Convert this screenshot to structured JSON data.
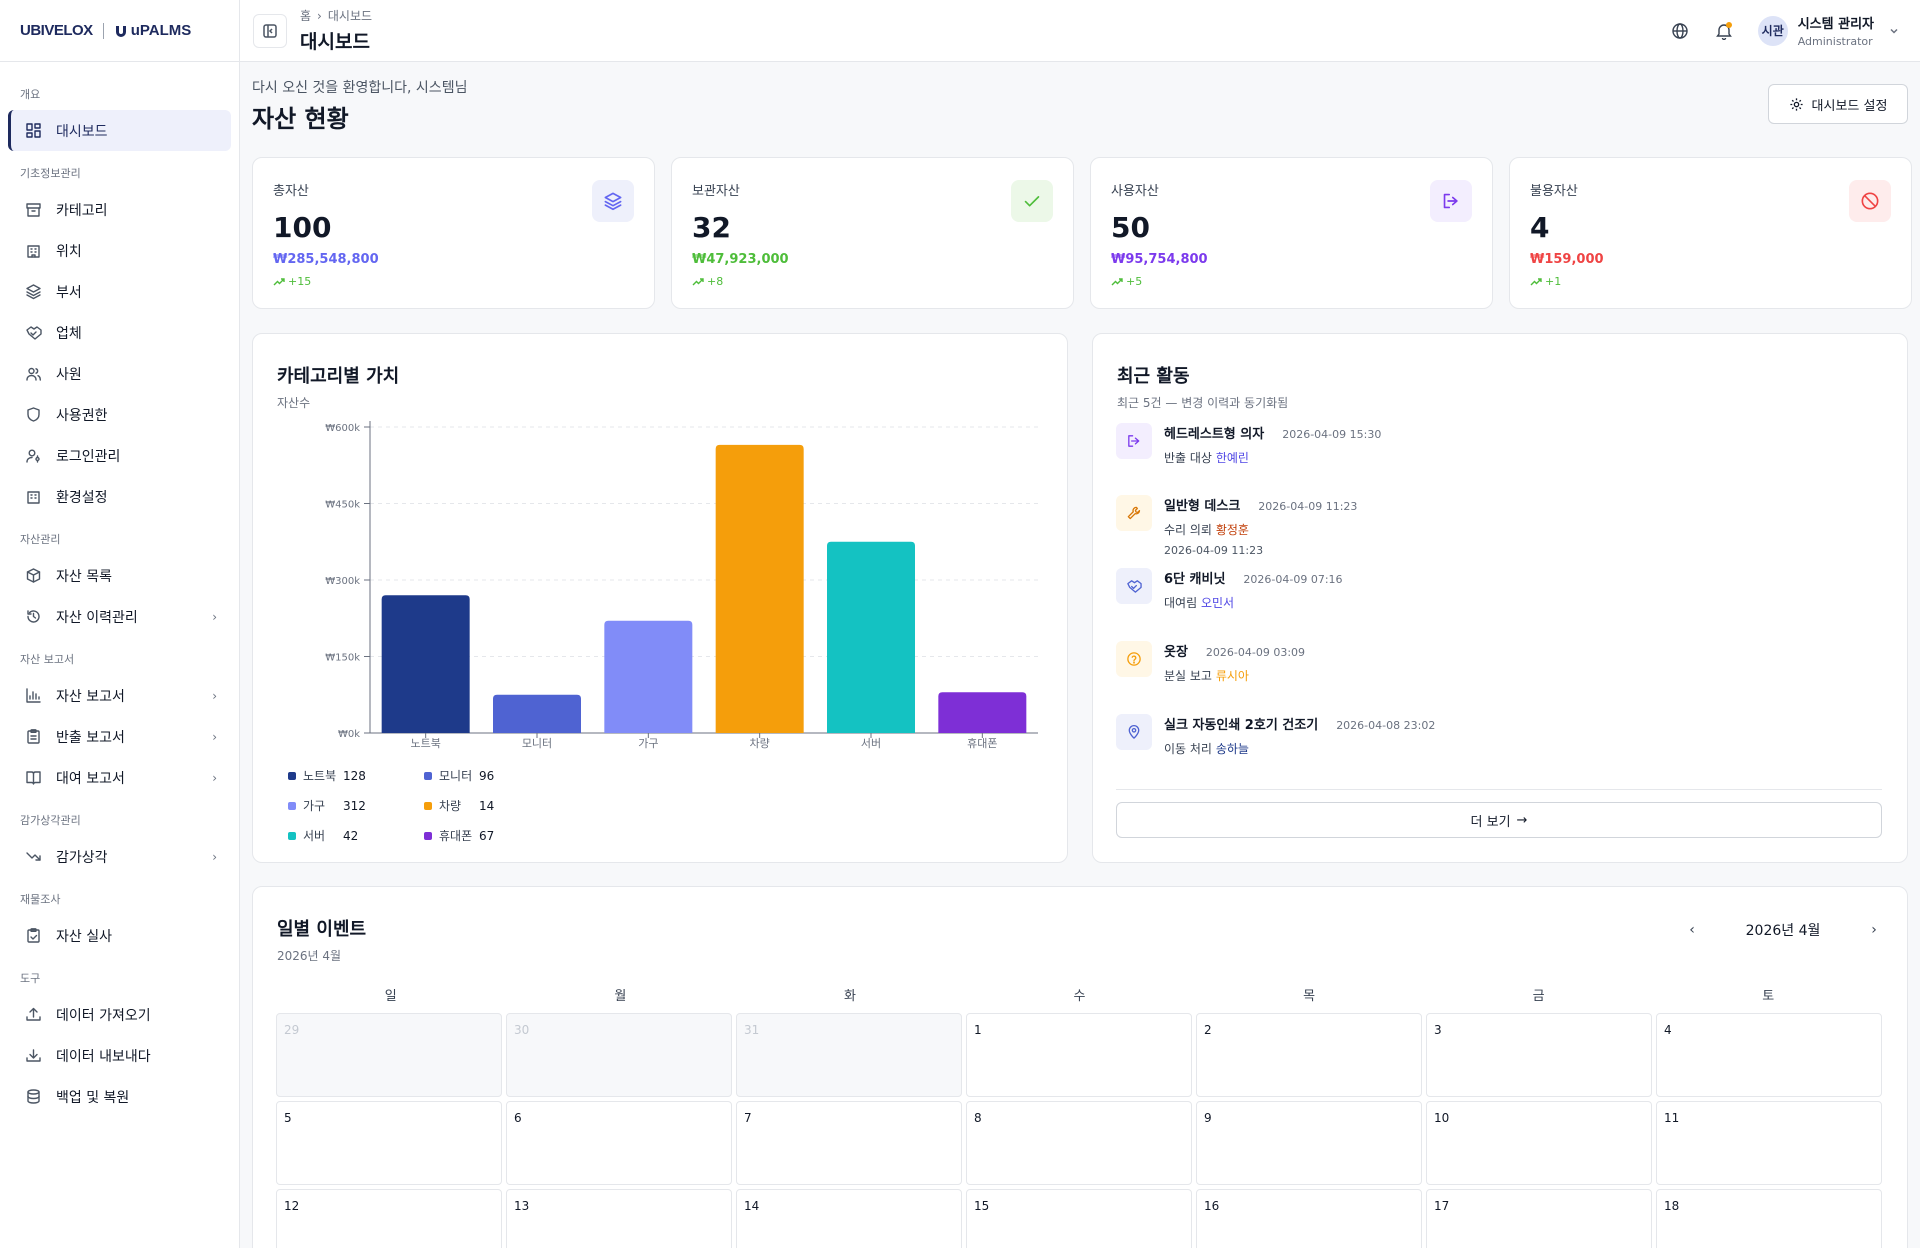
{
  "brand": {
    "logo1": "UBIVELOX",
    "logo2": "uPALMS"
  },
  "sidebar": {
    "sections": [
      {
        "label": "개요",
        "items": [
          {
            "label": "대시보드",
            "icon": "dashboard-icon",
            "active": true
          }
        ]
      },
      {
        "label": "기초정보관리",
        "items": [
          {
            "label": "카테고리",
            "icon": "archive-icon"
          },
          {
            "label": "위치",
            "icon": "building-icon"
          },
          {
            "label": "부서",
            "icon": "layers-icon"
          },
          {
            "label": "업체",
            "icon": "handshake-icon"
          },
          {
            "label": "사원",
            "icon": "users-icon"
          },
          {
            "label": "사용권한",
            "icon": "shield-icon"
          },
          {
            "label": "로그인관리",
            "icon": "user-key-icon"
          },
          {
            "label": "환경설정",
            "icon": "building-settings-icon"
          }
        ]
      },
      {
        "label": "자산관리",
        "items": [
          {
            "label": "자산 목록",
            "icon": "package-icon"
          },
          {
            "label": "자산 이력관리",
            "icon": "history-icon",
            "chevron": true
          }
        ]
      },
      {
        "label": "자산 보고서",
        "items": [
          {
            "label": "자산 보고서",
            "icon": "bar-chart-icon",
            "chevron": true
          },
          {
            "label": "반출 보고서",
            "icon": "clipboard-icon",
            "chevron": true
          },
          {
            "label": "대여 보고서",
            "icon": "book-icon",
            "chevron": true
          }
        ]
      },
      {
        "label": "감가상각관리",
        "items": [
          {
            "label": "감가상각",
            "icon": "trending-down-icon",
            "chevron": true
          }
        ]
      },
      {
        "label": "재물조사",
        "items": [
          {
            "label": "자산 실사",
            "icon": "clipboard-check-icon"
          }
        ]
      },
      {
        "label": "도구",
        "items": [
          {
            "label": "데이터 가져오기",
            "icon": "upload-icon"
          },
          {
            "label": "데이터 내보내다",
            "icon": "download-icon"
          },
          {
            "label": "백업 및 복원",
            "icon": "database-icon"
          }
        ]
      }
    ]
  },
  "header": {
    "breadcrumb_home": "홈",
    "breadcrumb_current": "대시보드",
    "title": "대시보드",
    "user": {
      "avatar": "시관",
      "name": "시스템 관리자",
      "role": "Administrator"
    }
  },
  "page": {
    "welcome": "다시 오신 것을 환영합니다, 시스템님",
    "title": "자산 현황",
    "settings_label": "대시보드 설정"
  },
  "stats": [
    {
      "title": "총자산",
      "value": "100",
      "money": "₩285,548,800",
      "delta": "+15",
      "color": "#6366f1",
      "icon": "layers-icon"
    },
    {
      "title": "보관자산",
      "value": "32",
      "money": "₩47,923,000",
      "delta": "+8",
      "color": "#4ebd3a",
      "icon": "check-icon"
    },
    {
      "title": "사용자산",
      "value": "50",
      "money": "₩95,754,800",
      "delta": "+5",
      "color": "#7c3aed",
      "icon": "log-out-icon"
    },
    {
      "title": "불용자산",
      "value": "4",
      "money": "₩159,000",
      "delta": "+1",
      "color": "#ef4444",
      "icon": "ban-icon"
    }
  ],
  "chart_data": {
    "type": "bar",
    "title": "카테고리별 가치",
    "subtitle": "자산수",
    "categories": [
      "노트북",
      "모니터",
      "가구",
      "차량",
      "서버",
      "휴대폰"
    ],
    "values": [
      270000,
      75000,
      220000,
      565000,
      375000,
      80000
    ],
    "colors": [
      "#1e3a8a",
      "#4f63d2",
      "#818cf8",
      "#f59e0b",
      "#14c2c2",
      "#7e2fd6"
    ],
    "ylim": [
      0,
      600000
    ],
    "yticks": [
      0,
      150000,
      300000,
      450000,
      600000
    ],
    "ytick_labels": [
      "₩0k",
      "₩150k",
      "₩300k",
      "₩450k",
      "₩600k"
    ],
    "grid": true,
    "legend": [
      {
        "name": "노트북",
        "count": "128"
      },
      {
        "name": "모니터",
        "count": "96"
      },
      {
        "name": "가구",
        "count": "312"
      },
      {
        "name": "차량",
        "count": "14"
      },
      {
        "name": "서버",
        "count": "42"
      },
      {
        "name": "휴대폰",
        "count": "67"
      }
    ]
  },
  "activity": {
    "title": "최근 활동",
    "subtitle": "최근 5건 — 변경 이력과 동기화됨",
    "items": [
      {
        "name": "헤드레스트형 의자",
        "time": "2026-04-09 15:30",
        "action": "반출 대상",
        "person": "한예린",
        "person_color": "#4f46e5",
        "icon": "log-out-icon",
        "bg": "#f3eefe",
        "fg": "#7c3aed"
      },
      {
        "name": "일반형 데스크",
        "time": "2026-04-09 11:23",
        "action": "수리 의뢰",
        "person": "황정훈",
        "person_color": "#c2410c",
        "sub": "2026-04-09 11:23",
        "icon": "wrench-icon",
        "bg": "#fff7e6",
        "fg": "#d97706"
      },
      {
        "name": "6단 캐비닛",
        "time": "2026-04-09 07:16",
        "action": "대여림",
        "person": "오민서",
        "person_color": "#4f46e5",
        "icon": "handshake-icon",
        "bg": "#eef0fb",
        "fg": "#4f63d2"
      },
      {
        "name": "옷장",
        "time": "2026-04-09 03:09",
        "action": "분실 보고",
        "person": "류시아",
        "person_color": "#f59e0b",
        "icon": "help-circle-icon",
        "bg": "#fff7e6",
        "fg": "#f59e0b"
      },
      {
        "name": "실크 자동인쇄 2호기 건조기",
        "time": "2026-04-08 23:02",
        "action": "이동 처리",
        "person": "송하늘",
        "person_color": "#1e3a8a",
        "icon": "map-pin-icon",
        "bg": "#eef0fb",
        "fg": "#4f63d2"
      }
    ],
    "more_label": "더 보기"
  },
  "calendar": {
    "title": "일별 이벤트",
    "subtitle": "2026년 4월",
    "month_label": "2026년 4월",
    "dows": [
      "일",
      "월",
      "화",
      "수",
      "목",
      "금",
      "토"
    ],
    "weeks": [
      [
        {
          "d": "29",
          "out": true
        },
        {
          "d": "30",
          "out": true
        },
        {
          "d": "31",
          "out": true
        },
        {
          "d": "1"
        },
        {
          "d": "2"
        },
        {
          "d": "3"
        },
        {
          "d": "4"
        }
      ],
      [
        {
          "d": "5"
        },
        {
          "d": "6"
        },
        {
          "d": "7"
        },
        {
          "d": "8"
        },
        {
          "d": "9"
        },
        {
          "d": "10"
        },
        {
          "d": "11"
        }
      ],
      [
        {
          "d": "12"
        },
        {
          "d": "13"
        },
        {
          "d": "14"
        },
        {
          "d": "15"
        },
        {
          "d": "16"
        },
        {
          "d": "17"
        },
        {
          "d": "18"
        }
      ]
    ]
  }
}
